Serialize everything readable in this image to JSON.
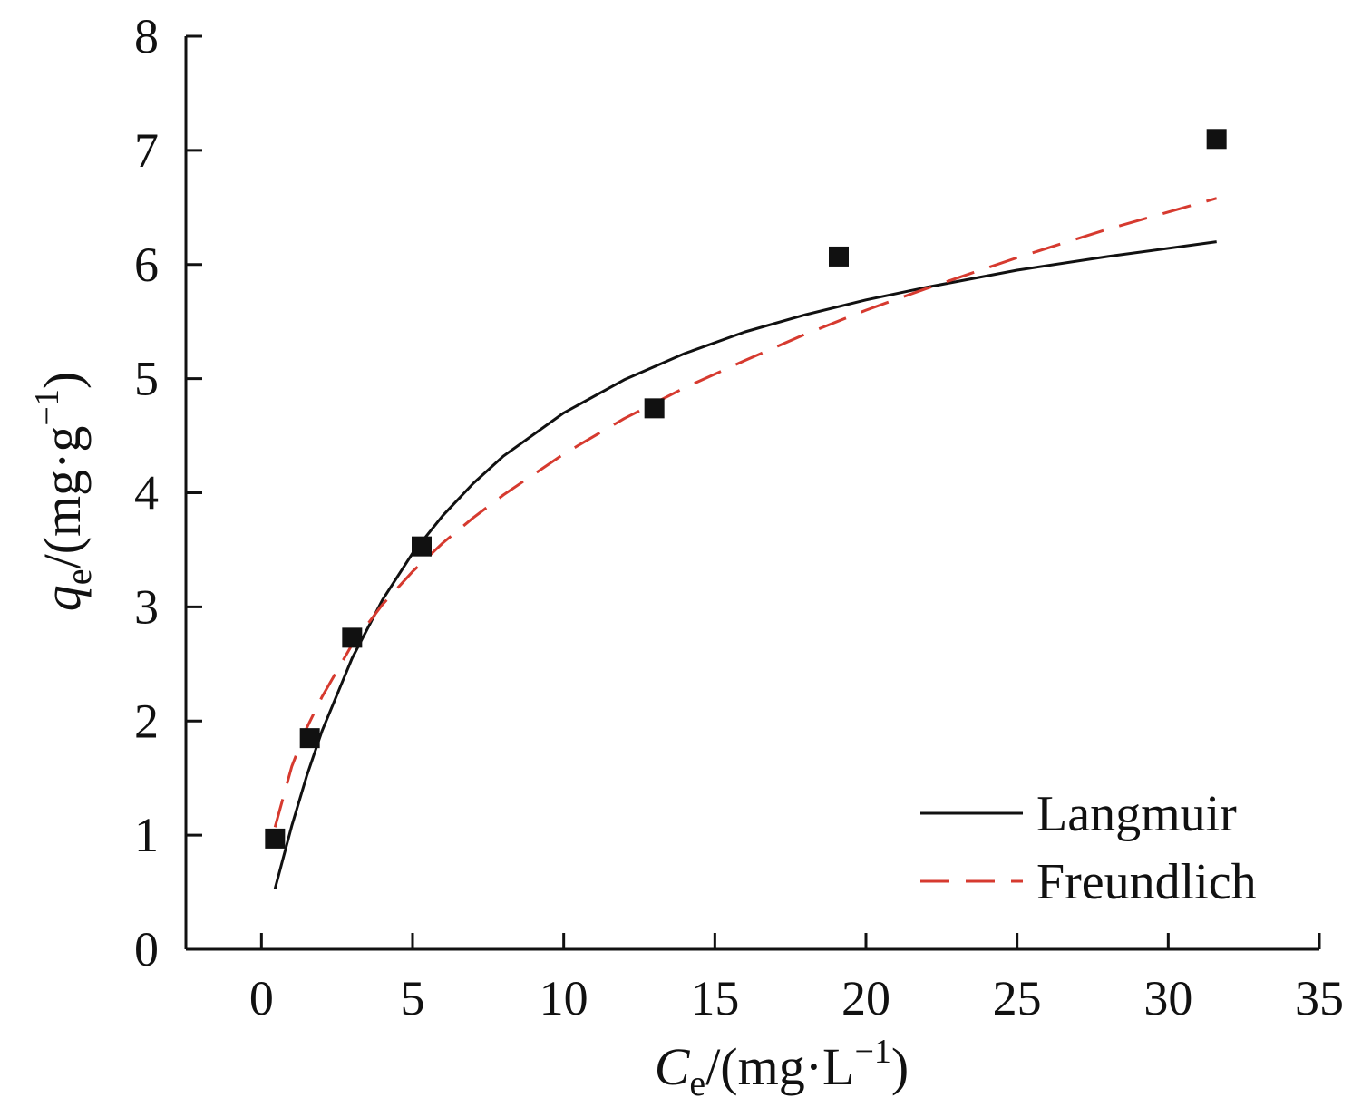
{
  "chart_data": {
    "type": "scatter",
    "title": "",
    "xlabel": {
      "symbol": "C",
      "subscript": "e",
      "unit": "/(mg·L",
      "sup": "−1",
      "close": ")"
    },
    "ylabel": {
      "symbol": "q",
      "subscript": "e",
      "unit": "/(mg·g",
      "sup": "−1",
      "close": ")"
    },
    "xlim": [
      -2.5,
      35
    ],
    "ylim": [
      0,
      8
    ],
    "xticks": [
      0,
      5,
      10,
      15,
      20,
      25,
      30,
      35
    ],
    "yticks": [
      0,
      1,
      2,
      3,
      4,
      5,
      6,
      7,
      8
    ],
    "grid": false,
    "legend": {
      "placement": "bottom-right",
      "entries": [
        {
          "label": "Langmuir",
          "style": "solid",
          "color": "#111111"
        },
        {
          "label": "Freundlich",
          "style": "dashed",
          "color": "#d63a2f"
        }
      ]
    },
    "points": [
      {
        "x": 0.45,
        "y": 0.97
      },
      {
        "x": 1.6,
        "y": 1.85
      },
      {
        "x": 3.0,
        "y": 2.73
      },
      {
        "x": 5.3,
        "y": 3.53
      },
      {
        "x": 13.0,
        "y": 4.74
      },
      {
        "x": 19.1,
        "y": 6.07
      },
      {
        "x": 31.6,
        "y": 7.1
      }
    ],
    "series": [
      {
        "name": "Langmuir",
        "color": "#111111",
        "style": "solid",
        "x": [
          0.45,
          1,
          1.5,
          2,
          3,
          4,
          5,
          6,
          7,
          8,
          10,
          12,
          14,
          16,
          18,
          20,
          22,
          25,
          28,
          31.6
        ],
        "y": [
          0.53,
          1.08,
          1.52,
          1.91,
          2.55,
          3.06,
          3.47,
          3.8,
          4.08,
          4.32,
          4.7,
          4.99,
          5.22,
          5.41,
          5.56,
          5.69,
          5.8,
          5.95,
          6.07,
          6.2
        ]
      },
      {
        "name": "Freundlich",
        "color": "#d63a2f",
        "style": "dashed",
        "x": [
          0.45,
          1,
          1.5,
          2,
          3,
          4,
          5,
          6,
          7,
          8,
          10,
          12,
          14,
          16,
          18,
          20,
          22,
          25,
          28,
          31.6
        ],
        "y": [
          1.07,
          1.6,
          1.94,
          2.21,
          2.67,
          3.02,
          3.31,
          3.56,
          3.78,
          3.98,
          4.34,
          4.65,
          4.92,
          5.16,
          5.39,
          5.6,
          5.79,
          6.06,
          6.31,
          6.58
        ]
      }
    ]
  }
}
